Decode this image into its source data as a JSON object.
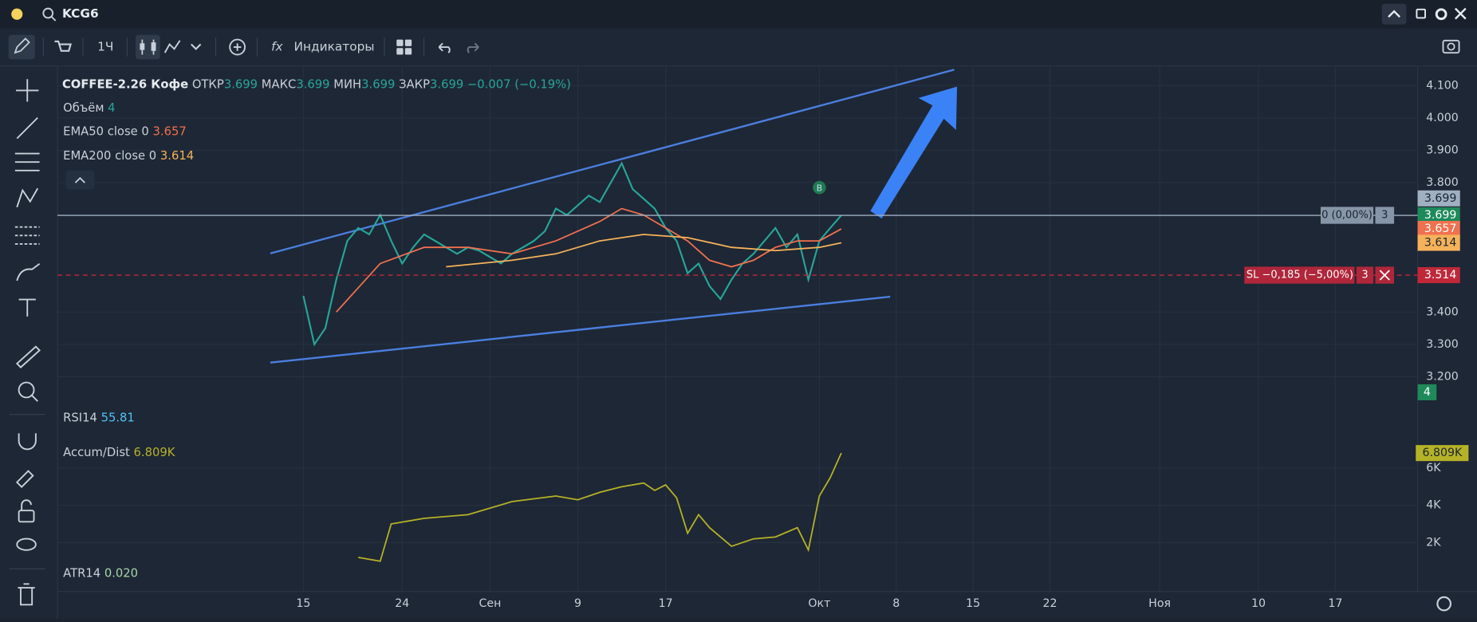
{
  "topbar": {
    "symbol": "KCG6"
  },
  "toolbar": {
    "interval": "1Ч",
    "indicators": "Индикаторы"
  },
  "chart_data": {
    "type": "line",
    "legend": {
      "name": "COFFEE-2.26 Кофе",
      "open_label": "ОТКР",
      "open": "3.699",
      "high_label": "МАКС",
      "high": "3.699",
      "low_label": "МИН",
      "low": "3.699",
      "close_label": "ЗАКР",
      "close": "3.699",
      "change": "−0.007 (−0.19%)"
    },
    "indicators": [
      {
        "name": "Объём",
        "value": "4"
      },
      {
        "name": "EMA50 close 0",
        "value": "3.657"
      },
      {
        "name": "EMA200 close 0",
        "value": "3.614"
      },
      {
        "name": "RSI14",
        "value": "55.81"
      },
      {
        "name": "Accum/Dist",
        "value": "6.809K"
      },
      {
        "name": "ATR14",
        "value": "0.020"
      }
    ],
    "xlim": [
      -7.4,
      116.5
    ],
    "xticks": [
      15,
      24,
      {
        "value": 32,
        "label": "Сен"
      },
      {
        "value": 40,
        "label": "9"
      },
      {
        "value": 48,
        "label": "17"
      },
      {
        "value": 62,
        "label": "Окт"
      },
      {
        "value": 69,
        "label": "8"
      },
      {
        "value": 76,
        "label": "15"
      },
      {
        "value": 83,
        "label": "22"
      },
      {
        "value": 93,
        "label": "Ноя"
      },
      {
        "value": 102,
        "label": "10"
      },
      {
        "value": 109,
        "label": "17"
      }
    ],
    "ylim": [
      3.1125,
      4.161
    ],
    "yticks": [
      {
        "value": 4.1,
        "label": "4.100"
      },
      {
        "value": 4.0,
        "label": "4.000"
      },
      {
        "value": 3.9,
        "label": "3.900"
      },
      {
        "value": 3.8,
        "label": "3.800"
      },
      {
        "value": 3.4,
        "label": "3.400"
      },
      {
        "value": 3.3,
        "label": "3.300"
      },
      {
        "value": 3.2,
        "label": "3.200"
      }
    ],
    "series": [
      {
        "name": "COFFEE-2.26",
        "color": "#26a69a",
        "x": [
          15,
          16,
          17,
          18,
          19,
          20,
          21,
          22,
          23,
          24,
          25,
          26,
          27,
          28,
          29,
          30,
          31,
          32,
          33,
          34,
          35,
          36,
          37,
          38,
          39,
          40,
          41,
          42,
          43,
          44,
          45,
          46,
          47,
          48,
          49,
          50,
          51,
          52,
          53,
          54,
          55,
          56,
          57,
          58,
          59,
          60,
          61,
          62,
          63,
          64
        ],
        "values": [
          3.45,
          3.3,
          3.35,
          3.5,
          3.62,
          3.66,
          3.64,
          3.7,
          3.62,
          3.55,
          3.6,
          3.64,
          3.62,
          3.6,
          3.58,
          3.6,
          3.59,
          3.57,
          3.55,
          3.58,
          3.6,
          3.62,
          3.65,
          3.72,
          3.7,
          3.73,
          3.76,
          3.74,
          3.8,
          3.86,
          3.78,
          3.75,
          3.72,
          3.66,
          3.62,
          3.52,
          3.55,
          3.48,
          3.44,
          3.5,
          3.55,
          3.58,
          3.62,
          3.66,
          3.6,
          3.64,
          3.5,
          3.62,
          3.66,
          3.699
        ]
      },
      {
        "name": "EMA50",
        "color": "#f0714f",
        "x": [
          18,
          22,
          26,
          30,
          34,
          38,
          42,
          44,
          46,
          48,
          50,
          52,
          54,
          56,
          58,
          60,
          62,
          64
        ],
        "values": [
          3.4,
          3.55,
          3.6,
          3.6,
          3.58,
          3.62,
          3.68,
          3.72,
          3.7,
          3.66,
          3.62,
          3.56,
          3.54,
          3.56,
          3.6,
          3.62,
          3.62,
          3.657
        ]
      },
      {
        "name": "EMA200",
        "color": "#f5b25a",
        "x": [
          28,
          34,
          38,
          42,
          46,
          50,
          54,
          58,
          62,
          64
        ],
        "values": [
          3.54,
          3.56,
          3.58,
          3.62,
          3.64,
          3.63,
          3.6,
          3.59,
          3.6,
          3.614
        ]
      }
    ],
    "price_labels": [
      {
        "value": 3.699,
        "label": "3.699",
        "color": "#9fb0c2"
      },
      {
        "value": 3.699,
        "label": "3.699",
        "color": "#1e8a5a"
      },
      {
        "value": 3.657,
        "label": "3.657",
        "color": "#f0714f"
      },
      {
        "value": 3.614,
        "label": "3.614",
        "color": "#f5b25a"
      },
      {
        "value": 3.514,
        "label": "3.514",
        "color": "#c0283a"
      }
    ],
    "volume_label": "4",
    "position_line": {
      "value": 3.699,
      "label": "0 (0,00%)",
      "qty": "3"
    },
    "stop_line": {
      "value": 3.514,
      "label": "SL −0,185 (−5,00%)",
      "qty": "3"
    },
    "marker": {
      "label": "B",
      "x": 62,
      "y": 3.785
    },
    "ad_pane": {
      "ylim": [
        1040,
        7620
      ],
      "yticks": [
        {
          "value": 6000,
          "label": "6K"
        },
        {
          "value": 4000,
          "label": "4K"
        },
        {
          "value": 2000,
          "label": "2K"
        }
      ],
      "color": "#b5b227",
      "x": [
        20,
        22,
        23,
        26,
        30,
        34,
        38,
        40,
        42,
        44,
        46,
        47,
        48,
        49,
        50,
        51,
        52,
        54,
        56,
        58,
        60,
        61,
        62,
        63,
        64
      ],
      "values": [
        1200,
        1000,
        3000,
        3300,
        3500,
        4200,
        4500,
        4300,
        4700,
        5000,
        5200,
        4800,
        5100,
        4400,
        2500,
        3500,
        2800,
        1800,
        2200,
        2300,
        2800,
        1600,
        4500,
        5500,
        6809
      ],
      "last": {
        "value": 6809,
        "label": "6.809K"
      }
    }
  }
}
